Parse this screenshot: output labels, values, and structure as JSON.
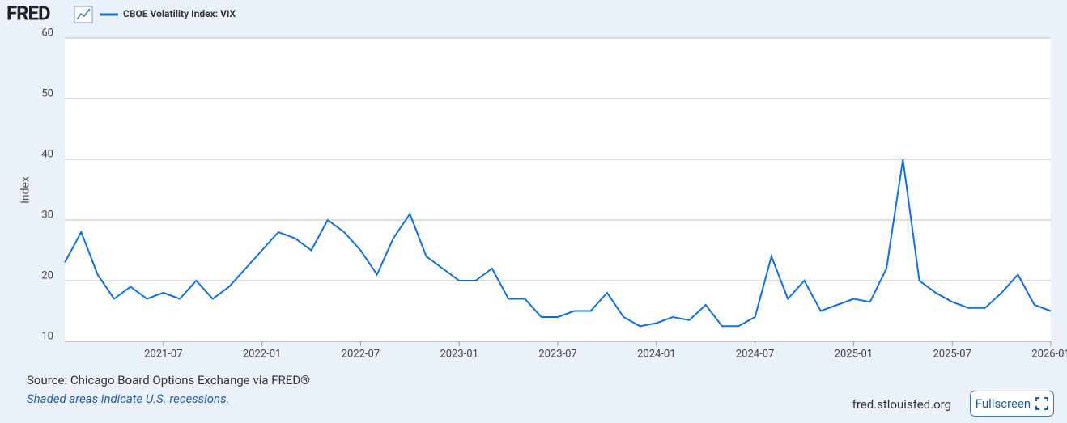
{
  "header": {
    "logo": "FRED"
  },
  "chart_data": {
    "type": "line",
    "y_label": "Index",
    "x": [
      "2021-01",
      "2021-02",
      "2021-03",
      "2021-04",
      "2021-05",
      "2021-06",
      "2021-07",
      "2021-08",
      "2021-09",
      "2021-10",
      "2021-11",
      "2021-12",
      "2022-01",
      "2022-02",
      "2022-03",
      "2022-04",
      "2022-05",
      "2022-06",
      "2022-07",
      "2022-08",
      "2022-09",
      "2022-10",
      "2022-11",
      "2022-12",
      "2023-01",
      "2023-02",
      "2023-03",
      "2023-04",
      "2023-05",
      "2023-06",
      "2023-07",
      "2023-08",
      "2023-09",
      "2023-10",
      "2023-11",
      "2023-12",
      "2024-01",
      "2024-02",
      "2024-03",
      "2024-04",
      "2024-05",
      "2024-06",
      "2024-07",
      "2024-08",
      "2024-09",
      "2024-10",
      "2024-11",
      "2024-12",
      "2025-01",
      "2025-02",
      "2025-03",
      "2025-04",
      "2025-05",
      "2025-06",
      "2025-07",
      "2025-08",
      "2025-09",
      "2025-10",
      "2025-11",
      "2025-12",
      "2026-01"
    ],
    "series": [
      {
        "name": "CBOE Volatility Index: VIX",
        "color": "#0c70e0",
        "values": [
          23,
          28,
          21,
          17,
          19,
          17,
          18,
          17,
          20,
          17,
          19,
          22,
          25,
          28,
          27,
          25,
          30,
          28,
          25,
          21,
          27,
          31,
          24,
          22,
          20,
          20,
          22,
          17,
          17,
          14,
          14,
          15,
          15,
          18,
          14,
          12.5,
          13,
          14,
          13.5,
          16,
          12.5,
          12.5,
          14,
          24,
          17,
          20,
          15,
          16,
          17,
          16.5,
          22,
          40,
          20,
          18,
          16.5,
          15.5,
          15.5,
          18,
          21,
          16,
          15
        ]
      }
    ],
    "xlim": [
      "2021-01",
      "2026-01"
    ],
    "xticks": [
      "2021-07",
      "2022-01",
      "2022-07",
      "2023-01",
      "2023-07",
      "2024-01",
      "2024-07",
      "2025-01",
      "2025-07",
      "2026-01"
    ],
    "ylim": [
      10,
      60
    ],
    "yticks": [
      10,
      20,
      30,
      40,
      50,
      60
    ],
    "grid": true
  },
  "footer": {
    "source": "Source: Chicago Board Options Exchange via FRED®",
    "note": "Shaded areas indicate U.S. recessions.",
    "site": "fred.stlouisfed.org",
    "fullscreen": "Fullscreen"
  }
}
